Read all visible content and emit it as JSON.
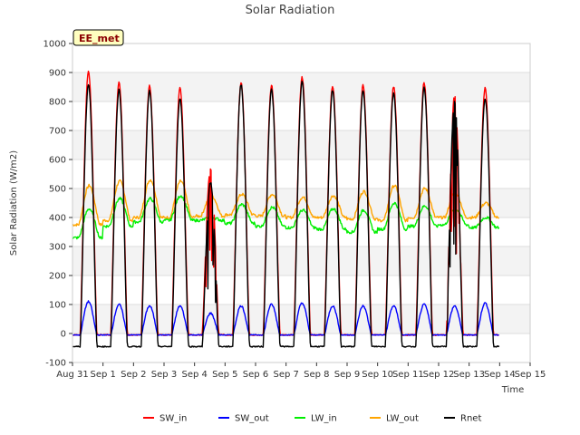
{
  "chart_data": {
    "type": "line",
    "title": "Solar Radiation",
    "xlabel": "Time",
    "ylabel": "Solar Radiation (W/m2)",
    "annotation": "EE_met",
    "xlim": [
      0,
      15
    ],
    "ylim": [
      -100,
      1000
    ],
    "y_ticks": [
      -100,
      0,
      100,
      200,
      300,
      400,
      500,
      600,
      700,
      800,
      900,
      1000
    ],
    "x_tick_labels": [
      "Aug 31",
      "Sep 1",
      "Sep 2",
      "Sep 3",
      "Sep 4",
      "Sep 5",
      "Sep 6",
      "Sep 7",
      "Sep 8",
      "Sep 9",
      "Sep 10",
      "Sep 11",
      "Sep 12",
      "Sep 13",
      "Sep 14",
      "Sep 15"
    ],
    "x_tick_positions": [
      0,
      1,
      2,
      3,
      4,
      5,
      6,
      7,
      8,
      9,
      10,
      11,
      12,
      13,
      14,
      15
    ],
    "grid": "horizontal bands",
    "legend_position": "bottom",
    "data_end_x": 14.15,
    "series": [
      {
        "name": "SW_in",
        "color": "#ff0000",
        "daily_peak": [
          905,
          865,
          855,
          845,
          570,
          865,
          855,
          885,
          855,
          855,
          850,
          865,
          820,
          845
        ],
        "night_value": -5
      },
      {
        "name": "SW_out",
        "color": "#0000ff",
        "daily_peak": [
          110,
          100,
          95,
          95,
          70,
          95,
          100,
          105,
          95,
          95,
          95,
          100,
          95,
          105
        ],
        "night_value": -5
      },
      {
        "name": "LW_in",
        "color": "#00ee00",
        "daily_peak": [
          430,
          465,
          465,
          475,
          400,
          445,
          435,
          425,
          430,
          425,
          450,
          440,
          430,
          400
        ],
        "daily_min": [
          330,
          370,
          385,
          390,
          390,
          380,
          370,
          365,
          360,
          350,
          360,
          370,
          375,
          365
        ]
      },
      {
        "name": "LW_out",
        "color": "#ffa500",
        "daily_peak": [
          510,
          525,
          530,
          525,
          475,
          480,
          480,
          470,
          475,
          490,
          510,
          500,
          485,
          450
        ],
        "daily_min": [
          375,
          390,
          400,
          400,
          405,
          410,
          405,
          400,
          400,
          395,
          390,
          400,
          400,
          400
        ]
      },
      {
        "name": "Rnet",
        "color": "#000000",
        "daily_peak": [
          860,
          840,
          835,
          810,
          520,
          860,
          840,
          865,
          840,
          840,
          830,
          845,
          800,
          810
        ],
        "night_value": -45
      }
    ]
  }
}
